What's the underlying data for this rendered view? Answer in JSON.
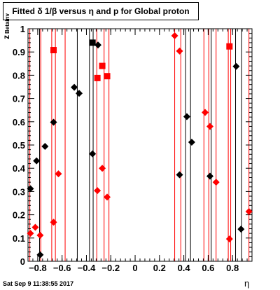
{
  "chart_data": {
    "type": "scatter",
    "title": "Fitted δ 1/β versus η and p for Global proton",
    "xlabel": "η",
    "ylabel": "z",
    "ylabel_sub": "Betainv",
    "timestamp": "Sat Sep  9 11:38:55 2017",
    "xlim": [
      -0.88,
      0.96
    ],
    "ylim": [
      0,
      1
    ],
    "xticks": [
      -0.8,
      -0.6,
      -0.4,
      -0.2,
      0,
      0.2,
      0.4,
      0.6,
      0.8
    ],
    "xtick_labels": [
      "−0.8",
      "−0.6",
      "−0.4",
      "−0.2",
      "0",
      "0.2",
      "0.4",
      "0.6",
      "0.8"
    ],
    "yticks": [
      0,
      0.1,
      0.2,
      0.3,
      0.4,
      0.5,
      0.6,
      0.7,
      0.8,
      0.9,
      1
    ],
    "ytick_labels": [
      "0",
      "0.1",
      "0.2",
      "0.3",
      "0.4",
      "0.5",
      "0.6",
      "0.7",
      "0.8",
      "0.9",
      "1"
    ],
    "grid": false,
    "colors": {
      "black": "#000000",
      "red": "#ff0000"
    },
    "vlines": [
      {
        "x": -0.865,
        "color": "red"
      },
      {
        "x": -0.785,
        "color": "black"
      },
      {
        "x": -0.775,
        "color": "red"
      },
      {
        "x": -0.685,
        "color": "red"
      },
      {
        "x": -0.655,
        "color": "red"
      },
      {
        "x": -0.575,
        "color": "red"
      },
      {
        "x": -0.475,
        "color": "black"
      },
      {
        "x": -0.375,
        "color": "black"
      },
      {
        "x": -0.345,
        "color": "black"
      },
      {
        "x": -0.315,
        "color": "red"
      },
      {
        "x": -0.255,
        "color": "red"
      },
      {
        "x": -0.215,
        "color": "red"
      },
      {
        "x": 0.325,
        "color": "red"
      },
      {
        "x": 0.375,
        "color": "red"
      },
      {
        "x": 0.415,
        "color": "black"
      },
      {
        "x": 0.455,
        "color": "black"
      },
      {
        "x": 0.565,
        "color": "red"
      },
      {
        "x": 0.605,
        "color": "red"
      },
      {
        "x": 0.625,
        "color": "black"
      },
      {
        "x": 0.665,
        "color": "red"
      },
      {
        "x": 0.765,
        "color": "red"
      },
      {
        "x": 0.785,
        "color": "red"
      },
      {
        "x": 0.825,
        "color": "black"
      },
      {
        "x": 0.875,
        "color": "black"
      },
      {
        "x": 0.935,
        "color": "red"
      }
    ],
    "series": [
      {
        "color": "black",
        "marker": "diamond",
        "points": [
          [
            -0.86,
            0.312
          ],
          [
            -0.81,
            0.432
          ],
          [
            -0.78,
            0.028
          ],
          [
            -0.74,
            0.494
          ],
          [
            -0.67,
            0.598
          ],
          [
            -0.5,
            0.748
          ],
          [
            -0.46,
            0.722
          ],
          [
            -0.35,
            0.462
          ],
          [
            -0.305,
            0.93
          ],
          [
            0.365,
            0.372
          ],
          [
            0.425,
            0.622
          ],
          [
            0.465,
            0.512
          ],
          [
            0.615,
            0.366
          ],
          [
            0.83,
            0.838
          ],
          [
            0.87,
            0.138
          ]
        ]
      },
      {
        "color": "black",
        "marker": "square",
        "points": [
          [
            -0.35,
            0.94
          ]
        ]
      },
      {
        "color": "red",
        "marker": "diamond",
        "points": [
          [
            -0.86,
            0.12
          ],
          [
            -0.82,
            0.146
          ],
          [
            -0.78,
            0.112
          ],
          [
            -0.67,
            0.168
          ],
          [
            -0.63,
            0.376
          ],
          [
            -0.31,
            0.304
          ],
          [
            -0.27,
            0.4
          ],
          [
            -0.23,
            0.276
          ],
          [
            0.325,
            0.97
          ],
          [
            0.365,
            0.904
          ],
          [
            0.575,
            0.64
          ],
          [
            0.615,
            0.58
          ],
          [
            0.665,
            0.34
          ],
          [
            0.775,
            0.096
          ],
          [
            0.935,
            0.214
          ]
        ]
      },
      {
        "color": "red",
        "marker": "square",
        "points": [
          [
            -0.67,
            0.908
          ],
          [
            -0.31,
            0.788
          ],
          [
            -0.27,
            0.84
          ],
          [
            -0.23,
            0.796
          ],
          [
            0.775,
            0.924
          ]
        ]
      }
    ]
  }
}
